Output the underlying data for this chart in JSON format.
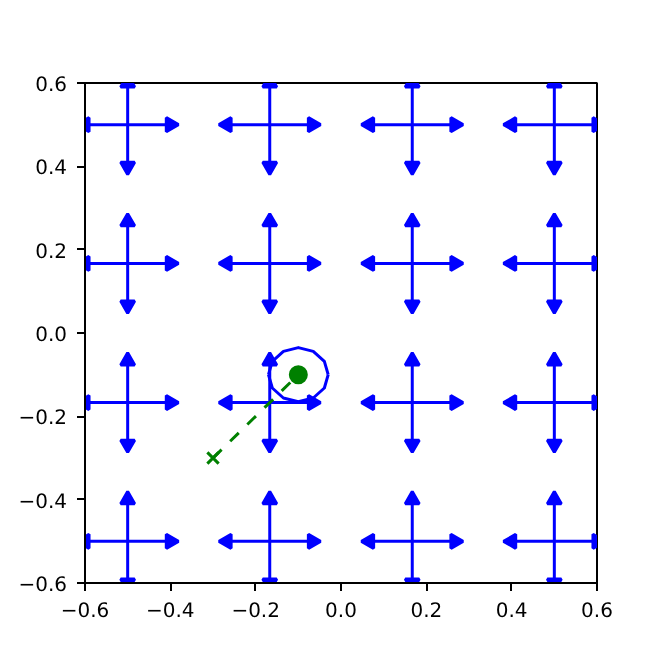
{
  "chart_data": {
    "type": "scatter",
    "xlim": [
      -0.6,
      0.6
    ],
    "ylim": [
      -0.6,
      0.6
    ],
    "xticks": [
      {
        "value": -0.6,
        "label": "−0.6"
      },
      {
        "value": -0.4,
        "label": "−0.4"
      },
      {
        "value": -0.2,
        "label": "−0.2"
      },
      {
        "value": 0,
        "label": "0.0"
      },
      {
        "value": 0.2,
        "label": "0.2"
      },
      {
        "value": 0.4,
        "label": "0.4"
      },
      {
        "value": 0.6,
        "label": "0.6"
      }
    ],
    "yticks": [
      {
        "value": -0.6,
        "label": "−0.6"
      },
      {
        "value": -0.4,
        "label": "−0.4"
      },
      {
        "value": -0.2,
        "label": "−0.2"
      },
      {
        "value": 0,
        "label": "0.0"
      },
      {
        "value": 0.2,
        "label": "0.2"
      },
      {
        "value": 0.4,
        "label": "0.4"
      },
      {
        "value": 0.6,
        "label": "0.6"
      }
    ],
    "grid": false,
    "series": [
      {
        "type": "line",
        "marker": "triangle",
        "color": "#0000ff",
        "x": [
          -0.6,
          -0.4
        ],
        "values": [
          0.5,
          0.5
        ]
      },
      {
        "type": "line",
        "marker": "triangle",
        "color": "#0000ff",
        "x": [
          -0.267,
          -0.067
        ],
        "values": [
          0.5,
          0.5
        ]
      },
      {
        "type": "line",
        "marker": "triangle",
        "color": "#0000ff",
        "x": [
          0.067,
          0.267
        ],
        "values": [
          0.5,
          0.5
        ]
      },
      {
        "type": "line",
        "marker": "triangle",
        "color": "#0000ff",
        "x": [
          0.4,
          0.6
        ],
        "values": [
          0.5,
          0.5
        ]
      },
      {
        "type": "line",
        "marker": "triangle",
        "color": "#0000ff",
        "x": [
          -0.6,
          -0.4
        ],
        "values": [
          0.167,
          0.167
        ]
      },
      {
        "type": "line",
        "marker": "triangle",
        "color": "#0000ff",
        "x": [
          -0.267,
          -0.067
        ],
        "values": [
          0.167,
          0.167
        ]
      },
      {
        "type": "line",
        "marker": "triangle",
        "color": "#0000ff",
        "x": [
          0.067,
          0.267
        ],
        "values": [
          0.167,
          0.167
        ]
      },
      {
        "type": "line",
        "marker": "triangle",
        "color": "#0000ff",
        "x": [
          0.4,
          0.6
        ],
        "values": [
          0.167,
          0.167
        ]
      },
      {
        "type": "line",
        "marker": "triangle",
        "color": "#0000ff",
        "x": [
          -0.6,
          -0.4
        ],
        "values": [
          -0.167,
          -0.167
        ]
      },
      {
        "type": "line",
        "marker": "triangle",
        "color": "#0000ff",
        "x": [
          -0.267,
          -0.067
        ],
        "values": [
          -0.167,
          -0.167
        ]
      },
      {
        "type": "line",
        "marker": "triangle",
        "color": "#0000ff",
        "x": [
          0.067,
          0.267
        ],
        "values": [
          -0.167,
          -0.167
        ]
      },
      {
        "type": "line",
        "marker": "triangle",
        "color": "#0000ff",
        "x": [
          0.4,
          0.6
        ],
        "values": [
          -0.167,
          -0.167
        ]
      },
      {
        "type": "line",
        "marker": "triangle",
        "color": "#0000ff",
        "x": [
          -0.6,
          -0.4
        ],
        "values": [
          -0.5,
          -0.5
        ]
      },
      {
        "type": "line",
        "marker": "triangle",
        "color": "#0000ff",
        "x": [
          -0.267,
          -0.067
        ],
        "values": [
          -0.5,
          -0.5
        ]
      },
      {
        "type": "line",
        "marker": "triangle",
        "color": "#0000ff",
        "x": [
          0.067,
          0.267
        ],
        "values": [
          -0.5,
          -0.5
        ]
      },
      {
        "type": "line",
        "marker": "triangle",
        "color": "#0000ff",
        "x": [
          0.4,
          0.6
        ],
        "values": [
          -0.5,
          -0.5
        ]
      },
      {
        "type": "line",
        "marker": "triangle",
        "color": "#0000ff",
        "x": [
          -0.5,
          -0.5
        ],
        "values": [
          0.4,
          0.6
        ]
      },
      {
        "type": "line",
        "marker": "triangle",
        "color": "#0000ff",
        "x": [
          -0.5,
          -0.5
        ],
        "values": [
          0.067,
          0.267
        ]
      },
      {
        "type": "line",
        "marker": "triangle",
        "color": "#0000ff",
        "x": [
          -0.5,
          -0.5
        ],
        "values": [
          -0.267,
          -0.067
        ]
      },
      {
        "type": "line",
        "marker": "triangle",
        "color": "#0000ff",
        "x": [
          -0.5,
          -0.5
        ],
        "values": [
          -0.6,
          -0.4
        ]
      },
      {
        "type": "line",
        "marker": "triangle",
        "color": "#0000ff",
        "x": [
          -0.167,
          -0.167
        ],
        "values": [
          0.4,
          0.6
        ]
      },
      {
        "type": "line",
        "marker": "triangle",
        "color": "#0000ff",
        "x": [
          -0.167,
          -0.167
        ],
        "values": [
          0.067,
          0.267
        ]
      },
      {
        "type": "line",
        "marker": "triangle",
        "color": "#0000ff",
        "x": [
          -0.167,
          -0.167
        ],
        "values": [
          -0.267,
          -0.067
        ]
      },
      {
        "type": "line",
        "marker": "triangle",
        "color": "#0000ff",
        "x": [
          -0.167,
          -0.167
        ],
        "values": [
          -0.6,
          -0.4
        ]
      },
      {
        "type": "line",
        "marker": "triangle",
        "color": "#0000ff",
        "x": [
          0.167,
          0.167
        ],
        "values": [
          0.4,
          0.6
        ]
      },
      {
        "type": "line",
        "marker": "triangle",
        "color": "#0000ff",
        "x": [
          0.167,
          0.167
        ],
        "values": [
          0.067,
          0.267
        ]
      },
      {
        "type": "line",
        "marker": "triangle",
        "color": "#0000ff",
        "x": [
          0.167,
          0.167
        ],
        "values": [
          -0.267,
          -0.067
        ]
      },
      {
        "type": "line",
        "marker": "triangle",
        "color": "#0000ff",
        "x": [
          0.167,
          0.167
        ],
        "values": [
          -0.6,
          -0.4
        ]
      },
      {
        "type": "line",
        "marker": "triangle",
        "color": "#0000ff",
        "x": [
          0.5,
          0.5
        ],
        "values": [
          0.4,
          0.6
        ]
      },
      {
        "type": "line",
        "marker": "triangle",
        "color": "#0000ff",
        "x": [
          0.5,
          0.5
        ],
        "values": [
          0.067,
          0.267
        ]
      },
      {
        "type": "line",
        "marker": "triangle",
        "color": "#0000ff",
        "x": [
          0.5,
          0.5
        ],
        "values": [
          -0.267,
          -0.067
        ]
      },
      {
        "type": "line",
        "marker": "triangle",
        "color": "#0000ff",
        "x": [
          0.5,
          0.5
        ],
        "values": [
          -0.6,
          -0.4
        ]
      },
      {
        "type": "line",
        "line_style": "dashed",
        "color": "#008000",
        "x": [
          -0.3,
          -0.1
        ],
        "values": [
          -0.3,
          -0.1
        ]
      },
      {
        "type": "scatter",
        "marker": "cross",
        "color": "#008000",
        "x": [
          -0.3
        ],
        "values": [
          -0.3
        ]
      },
      {
        "type": "line",
        "line_style": "solid",
        "color": "#0000ff",
        "x": [
          -0.17,
          -0.161,
          -0.135,
          -0.1,
          -0.065,
          -0.039,
          -0.03
        ],
        "values": [
          -0.1,
          -0.068,
          -0.044,
          -0.035,
          -0.044,
          -0.068,
          -0.1
        ]
      },
      {
        "type": "line",
        "line_style": "solid",
        "color": "#0000ff",
        "x": [
          -0.17,
          -0.161,
          -0.135,
          -0.1,
          -0.065,
          -0.039,
          -0.03
        ],
        "values": [
          -0.1,
          -0.132,
          -0.156,
          -0.165,
          -0.156,
          -0.132,
          -0.1
        ]
      },
      {
        "marker": "circle",
        "color": "#008000",
        "x": [
          -0.1
        ],
        "values": [
          -0.1
        ]
      }
    ]
  }
}
